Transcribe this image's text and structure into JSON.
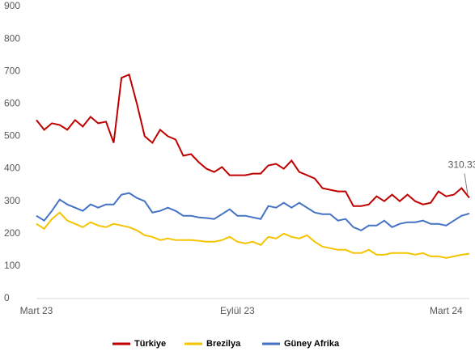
{
  "chart_data": {
    "type": "line",
    "categories": [
      "Mart 23",
      null,
      null,
      null,
      null,
      null,
      null,
      null,
      null,
      null,
      null,
      null,
      null,
      null,
      null,
      null,
      null,
      null,
      null,
      null,
      null,
      null,
      null,
      null,
      null,
      null,
      "Eylül 23",
      null,
      null,
      null,
      null,
      null,
      null,
      null,
      null,
      null,
      null,
      null,
      null,
      null,
      null,
      null,
      null,
      null,
      null,
      null,
      null,
      null,
      null,
      null,
      null,
      null,
      null,
      "Mart 24",
      null,
      null,
      null
    ],
    "series": [
      {
        "name": "Türkiye",
        "color": "#c00000",
        "values": [
          550,
          520,
          540,
          535,
          520,
          550,
          530,
          560,
          540,
          545,
          480,
          680,
          690,
          600,
          500,
          480,
          520,
          500,
          490,
          440,
          445,
          420,
          400,
          390,
          405,
          380,
          380,
          380,
          385,
          385,
          410,
          415,
          400,
          425,
          390,
          380,
          370,
          340,
          335,
          330,
          330,
          285,
          285,
          290,
          315,
          300,
          320,
          300,
          320,
          300,
          290,
          295,
          330,
          315,
          320,
          340,
          310.33
        ],
        "value_labels": [
          null,
          null,
          null,
          null,
          null,
          null,
          null,
          null,
          null,
          null,
          null,
          null,
          null,
          null,
          null,
          null,
          null,
          null,
          null,
          null,
          null,
          null,
          null,
          null,
          null,
          null,
          null,
          null,
          null,
          null,
          null,
          null,
          null,
          null,
          null,
          null,
          null,
          null,
          null,
          null,
          null,
          null,
          null,
          null,
          null,
          null,
          null,
          null,
          null,
          null,
          null,
          null,
          null,
          null,
          null,
          null,
          "310.33"
        ]
      },
      {
        "name": "Brezilya",
        "color": "#f5c400",
        "values": [
          230,
          215,
          245,
          265,
          240,
          230,
          220,
          235,
          225,
          220,
          230,
          225,
          220,
          210,
          195,
          190,
          180,
          185,
          180,
          180,
          180,
          178,
          175,
          175,
          180,
          190,
          175,
          170,
          175,
          165,
          190,
          185,
          200,
          190,
          185,
          195,
          175,
          160,
          155,
          150,
          150,
          140,
          140,
          150,
          135,
          135,
          140,
          140,
          140,
          135,
          140,
          130,
          130,
          125,
          130,
          135,
          138
        ]
      },
      {
        "name": "Güney Afrika",
        "color": "#4472c4",
        "values": [
          255,
          240,
          270,
          305,
          290,
          280,
          270,
          290,
          280,
          290,
          290,
          320,
          325,
          310,
          300,
          265,
          270,
          280,
          270,
          255,
          255,
          250,
          248,
          245,
          260,
          275,
          255,
          255,
          250,
          245,
          285,
          280,
          295,
          280,
          295,
          280,
          265,
          260,
          260,
          240,
          245,
          220,
          210,
          225,
          225,
          240,
          220,
          230,
          235,
          235,
          240,
          230,
          230,
          225,
          240,
          255,
          262
        ]
      }
    ],
    "ylim": [
      0,
      900
    ],
    "yticks": [
      0,
      100,
      200,
      300,
      400,
      500,
      600,
      700,
      800,
      900
    ],
    "grid": false,
    "legend": "bottom"
  }
}
